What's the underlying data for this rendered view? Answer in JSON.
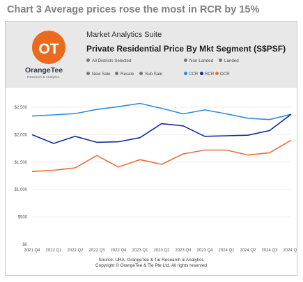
{
  "caption": "Chart 3 Average prices rose the most in RCR by 15%",
  "header": {
    "logo_name": "OrangeTee",
    "logo_sub": "Research & Analytics",
    "suite": "Market Analytics Suite",
    "title": "Private Residential Price By Mkt Segment (S$PSF)"
  },
  "filters": {
    "district": "All Districts Selected",
    "property_types": [
      "Non-Landed",
      "Landed"
    ],
    "sale_types": [
      "New Sale",
      "Resale",
      "Sub Sale"
    ]
  },
  "legend": [
    {
      "name": "CCR",
      "color": "#2e8de2"
    },
    {
      "name": "RCR",
      "color": "#162d8f"
    },
    {
      "name": "OCR",
      "color": "#e8703a"
    }
  ],
  "footer": {
    "source": "Source: URA, OrangeTee & Tie Research & Analytics",
    "copyright": "Copyright © OrangeTee & Tie Pte Ltd. All rights reserved"
  },
  "chart_data": {
    "type": "line",
    "categories": [
      "2021 Q4",
      "2022 Q1",
      "2022 Q2",
      "2022 Q3",
      "2022 Q4",
      "2023 Q1",
      "2023 Q2",
      "2023 Q3",
      "2023 Q4",
      "2024 Q1",
      "2024 Q2",
      "2024 Q3",
      "2024 Q4"
    ],
    "ylim": [
      0,
      2500
    ],
    "yticks": [
      0,
      500,
      1000,
      1500,
      2000,
      2500
    ],
    "ytick_labels": [
      "$0",
      "$500",
      "$1,000",
      "$1,500",
      "$2,000",
      "$2,500"
    ],
    "grid": true,
    "legend_position": "top-right",
    "series": [
      {
        "name": "CCR",
        "color": "#2e8de2",
        "values": [
          2340,
          2360,
          2385,
          2460,
          2510,
          2570,
          2480,
          2380,
          2450,
          2380,
          2300,
          2275,
          2370
        ]
      },
      {
        "name": "RCR",
        "color": "#162d8f",
        "values": [
          2000,
          1840,
          1970,
          1860,
          1870,
          1945,
          2200,
          2160,
          1970,
          1980,
          1990,
          2075,
          2370
        ]
      },
      {
        "name": "OCR",
        "color": "#e8703a",
        "values": [
          1330,
          1350,
          1395,
          1620,
          1410,
          1545,
          1460,
          1650,
          1720,
          1720,
          1630,
          1670,
          1900
        ]
      }
    ]
  }
}
